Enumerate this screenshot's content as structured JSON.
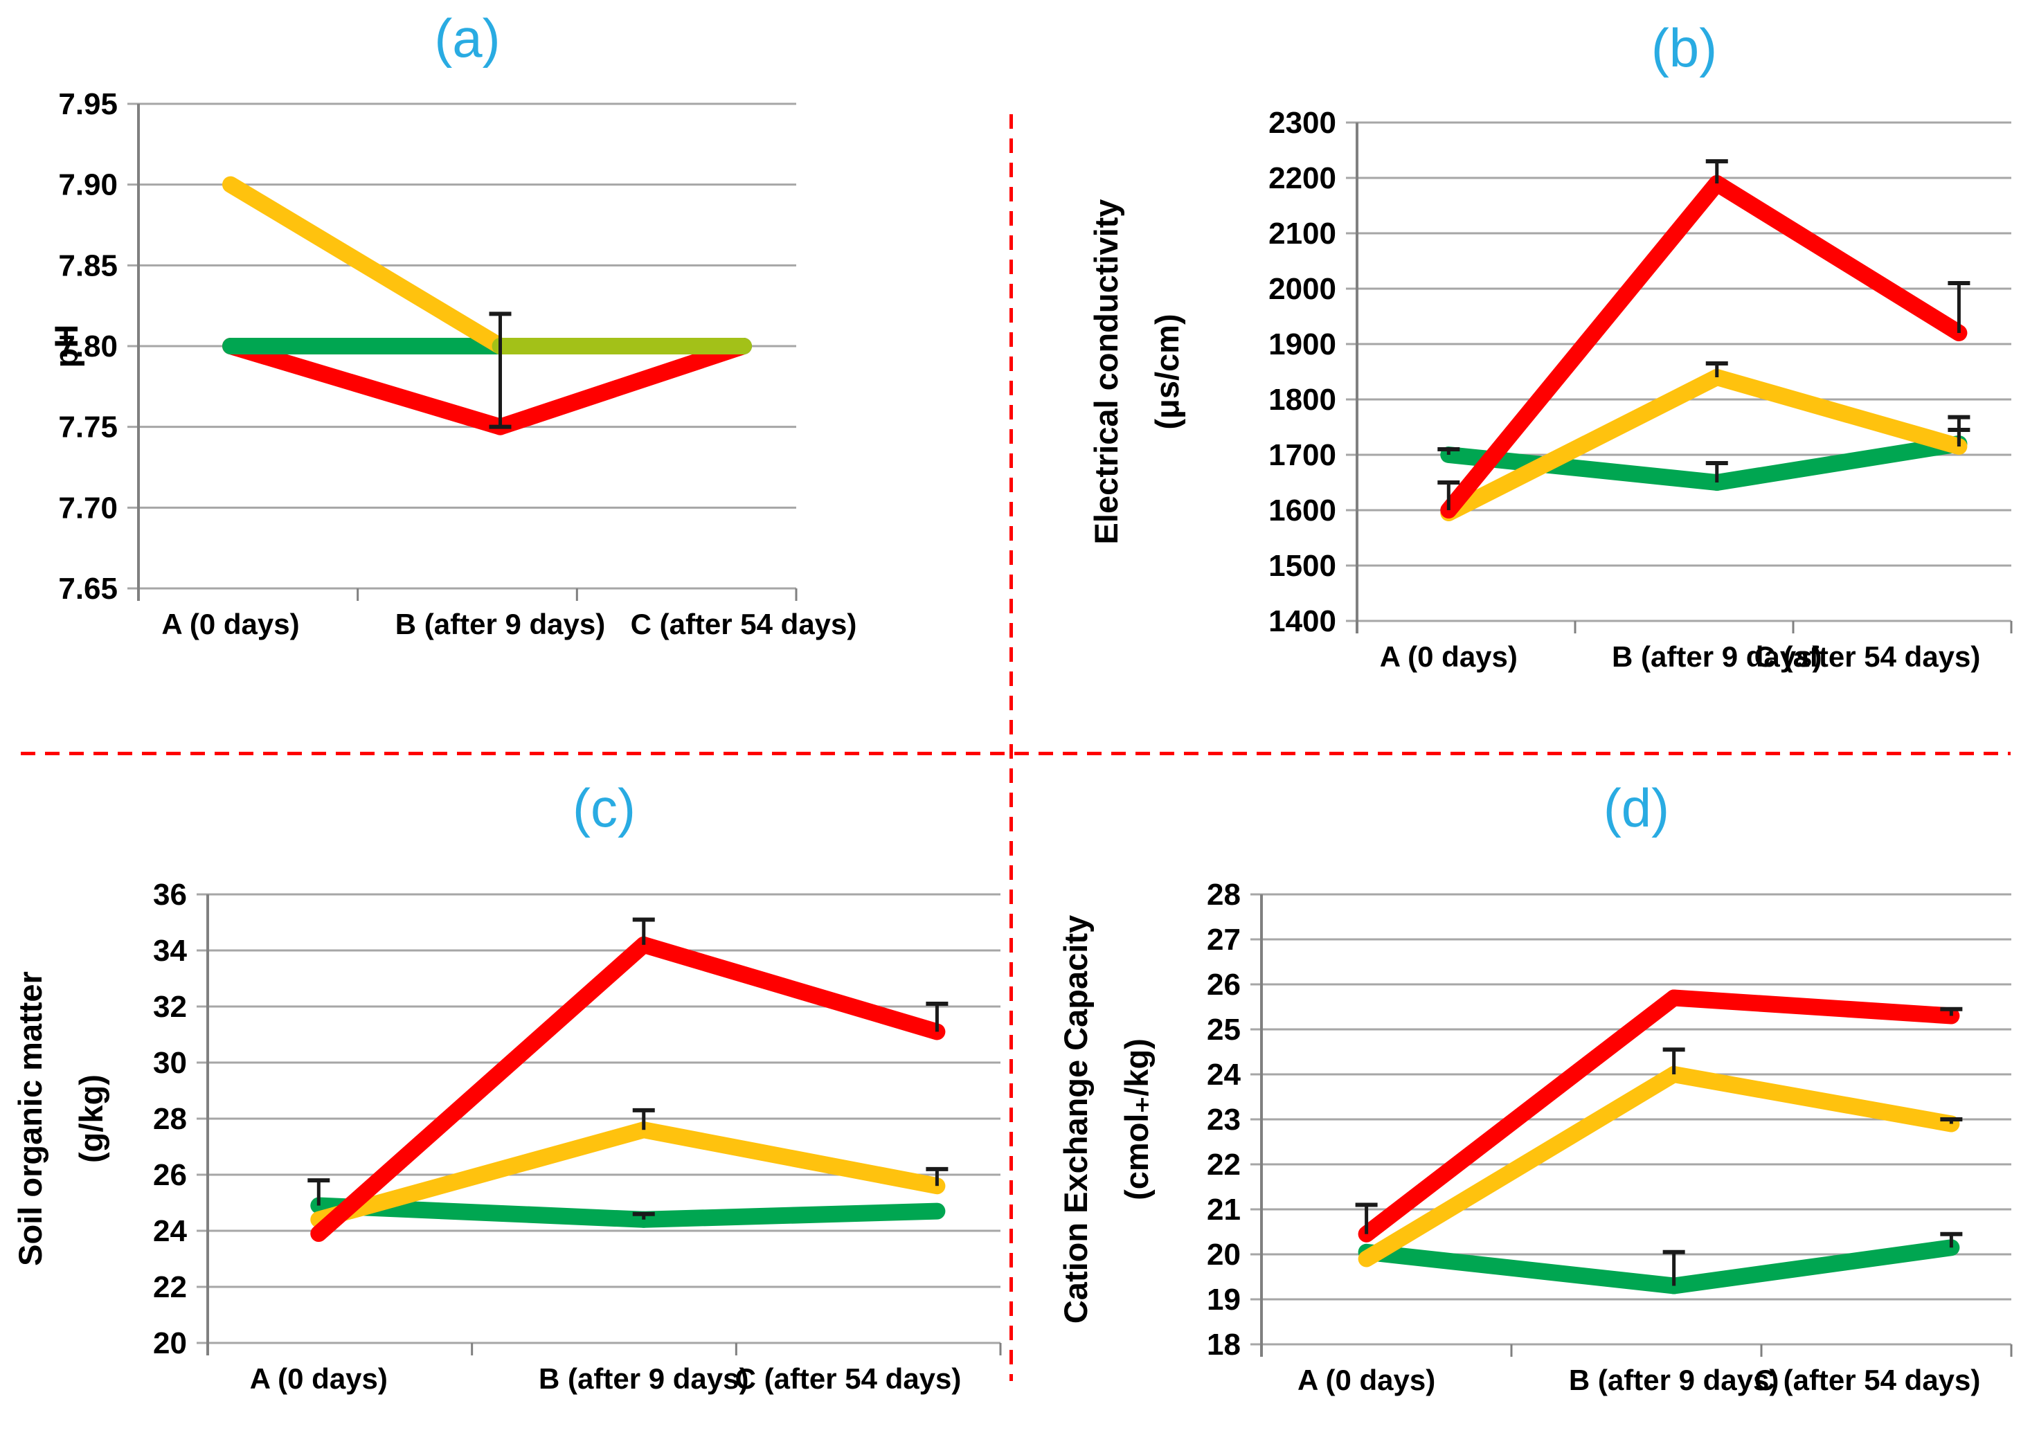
{
  "style": {
    "accent_blue": "#29ABE2",
    "divider_red": "#FF0000",
    "grid_gray": "#A6A6A6",
    "axis_gray": "#808080",
    "error_bar_black": "#1A1A1A",
    "series_green": "#00A651",
    "series_yellow": "#FFC20E",
    "series_red": "#FF0000",
    "series_olive_overlap": "#A3C118"
  },
  "chart_data": [
    {
      "id": "a",
      "type": "line",
      "title": "(a)",
      "ylabel": "pH",
      "ylabel_unit": "",
      "categories": [
        "A (0 days)",
        "B (after 9 days)",
        "C (after 54 days)"
      ],
      "ylim": [
        7.65,
        7.95
      ],
      "ytick_step": 0.05,
      "ytick_decimals": 2,
      "grid": true,
      "legend": "none",
      "series": [
        {
          "name": "red",
          "color": "#FF0000",
          "values": [
            7.8,
            7.75,
            7.8
          ]
        },
        {
          "name": "green",
          "color": "#00A651",
          "values": [
            7.8,
            7.8,
            7.8
          ]
        },
        {
          "name": "yellow",
          "color": "#FFC20E",
          "segment_colors": [
            "#FFC20E",
            "#A3C118"
          ],
          "values": [
            7.9,
            7.8,
            7.8
          ],
          "errors_up": [
            null,
            0.02,
            null
          ],
          "errors_down": [
            null,
            0.05,
            null
          ]
        }
      ]
    },
    {
      "id": "b",
      "type": "line",
      "title": "(b)",
      "ylabel": "Electrical conductivity",
      "ylabel_unit": "(μs/cm)",
      "categories": [
        "A (0 days)",
        "B (after 9 days)",
        "C (after 54 days)"
      ],
      "ylim": [
        1400,
        2300
      ],
      "ytick_step": 100,
      "ytick_decimals": 0,
      "grid": true,
      "legend": "none",
      "series": [
        {
          "name": "green",
          "color": "#00A651",
          "values": [
            1700,
            1650,
            1720
          ],
          "errors_up": [
            10,
            35,
            48
          ]
        },
        {
          "name": "yellow",
          "color": "#FFC20E",
          "values": [
            1595,
            1840,
            1715
          ],
          "errors_up": [
            null,
            25,
            30
          ]
        },
        {
          "name": "red",
          "color": "#FF0000",
          "values": [
            1600,
            2190,
            1920
          ],
          "errors_up": [
            50,
            40,
            90
          ]
        }
      ]
    },
    {
      "id": "c",
      "type": "line",
      "title": "(c)",
      "ylabel": "Soil organic matter",
      "ylabel_unit": "(g/kg)",
      "categories": [
        "A (0 days)",
        "B (after 9 days)",
        "C (after 54 days)"
      ],
      "ylim": [
        20,
        36
      ],
      "ytick_step": 2,
      "ytick_decimals": 0,
      "grid": true,
      "legend": "none",
      "series": [
        {
          "name": "green",
          "color": "#00A651",
          "values": [
            24.9,
            24.4,
            24.7
          ],
          "errors_up": [
            0.9,
            0.2,
            null
          ]
        },
        {
          "name": "yellow",
          "color": "#FFC20E",
          "values": [
            24.4,
            27.6,
            25.6
          ],
          "errors_up": [
            null,
            0.7,
            0.6
          ]
        },
        {
          "name": "red",
          "color": "#FF0000",
          "values": [
            23.9,
            34.2,
            31.1
          ],
          "errors_up": [
            null,
            0.9,
            1.0
          ]
        }
      ]
    },
    {
      "id": "d",
      "type": "line",
      "title": "(d)",
      "ylabel": "Cation Exchange Capacity",
      "ylabel_unit": "(cmol₊/kg)",
      "categories": [
        "A (0 days)",
        "B (after 9 days)",
        "C (after 54 days)"
      ],
      "ylim": [
        18,
        28
      ],
      "ytick_step": 1,
      "ytick_decimals": 0,
      "grid": true,
      "legend": "none",
      "series": [
        {
          "name": "green",
          "color": "#00A651",
          "values": [
            20.05,
            19.3,
            20.15
          ],
          "errors_up": [
            null,
            0.75,
            0.3
          ]
        },
        {
          "name": "yellow",
          "color": "#FFC20E",
          "values": [
            19.9,
            24.0,
            22.9
          ],
          "errors_up": [
            null,
            0.55,
            0.1
          ]
        },
        {
          "name": "red",
          "color": "#FF0000",
          "values": [
            20.45,
            25.7,
            25.3
          ],
          "errors_up": [
            0.65,
            null,
            0.15
          ]
        }
      ]
    }
  ]
}
